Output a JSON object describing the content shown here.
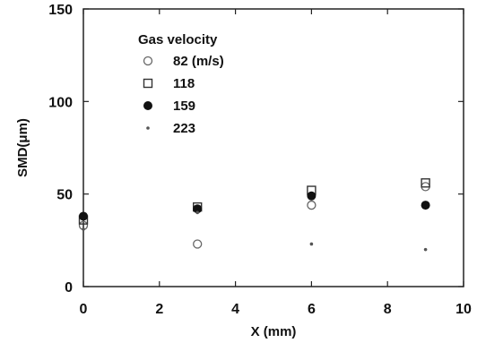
{
  "chart_data": {
    "type": "scatter",
    "xlabel": "X (mm)",
    "ylabel": "SMD(μm)",
    "xlim": [
      0,
      10
    ],
    "ylim": [
      0,
      150
    ],
    "xticks": [
      "0",
      "2",
      "4",
      "6",
      "8",
      "10"
    ],
    "yticks": [
      "0",
      "50",
      "100",
      "150"
    ],
    "grid": false,
    "legend": {
      "title": "Gas velocity",
      "placement": "top-left"
    },
    "series": [
      {
        "name": "82 (m/s)",
        "marker": "open-circle",
        "x": [
          0,
          3,
          6,
          9
        ],
        "y": [
          33,
          23,
          44,
          54
        ]
      },
      {
        "name": "118",
        "marker": "open-square",
        "x": [
          0,
          3,
          6,
          9
        ],
        "y": [
          36,
          43,
          52,
          56
        ]
      },
      {
        "name": "159",
        "marker": "filled-circle",
        "x": [
          0,
          3,
          6,
          9
        ],
        "y": [
          38,
          42,
          49,
          44
        ]
      },
      {
        "name": "223",
        "marker": "small-dot",
        "x": [
          0,
          3,
          6,
          9
        ],
        "y": [
          31,
          40,
          23,
          20
        ]
      }
    ]
  }
}
